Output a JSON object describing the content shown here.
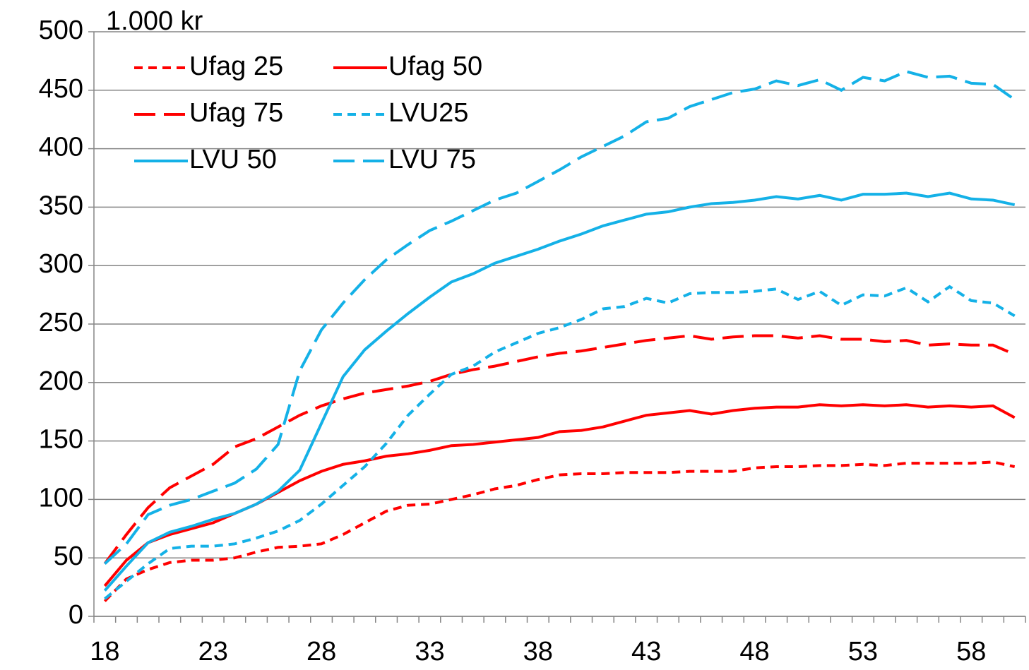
{
  "chart_data": {
    "type": "line",
    "ylabel": "1.000 kr",
    "x": [
      18,
      19,
      20,
      21,
      22,
      23,
      24,
      25,
      26,
      27,
      28,
      29,
      30,
      31,
      32,
      33,
      34,
      35,
      36,
      37,
      38,
      39,
      40,
      41,
      42,
      43,
      44,
      45,
      46,
      47,
      48,
      49,
      50,
      51,
      52,
      53,
      54,
      55,
      56,
      57,
      58,
      59,
      60
    ],
    "xlim": [
      17.5,
      60.5
    ],
    "xticks": [
      18,
      23,
      28,
      33,
      38,
      43,
      48,
      53,
      58
    ],
    "ylim": [
      0,
      500
    ],
    "yticks": [
      0,
      50,
      100,
      150,
      200,
      250,
      300,
      350,
      400,
      450,
      500
    ],
    "grid": true,
    "legend": "upper left",
    "series": [
      {
        "name": "Ufag 25",
        "color": "#ff0000",
        "dash": "short",
        "values": [
          13,
          32,
          40,
          46,
          48,
          48,
          50,
          55,
          59,
          60,
          62,
          70,
          80,
          90,
          95,
          96,
          100,
          104,
          109,
          112,
          117,
          121,
          122,
          122,
          123,
          123,
          123,
          124,
          124,
          124,
          127,
          128,
          128,
          129,
          129,
          130,
          129,
          131,
          131,
          131,
          131,
          132,
          128
        ]
      },
      {
        "name": "Ufag 50",
        "color": "#ff0000",
        "dash": "solid",
        "values": [
          26,
          48,
          63,
          70,
          75,
          80,
          88,
          96,
          106,
          116,
          124,
          130,
          133,
          137,
          139,
          142,
          146,
          147,
          149,
          151,
          153,
          158,
          159,
          162,
          167,
          172,
          174,
          176,
          173,
          176,
          178,
          179,
          179,
          181,
          180,
          181,
          180,
          181,
          179,
          180,
          179,
          180,
          170
        ]
      },
      {
        "name": "Ufag 75",
        "color": "#ff0000",
        "dash": "long",
        "values": [
          45,
          70,
          93,
          110,
          120,
          130,
          145,
          152,
          162,
          172,
          180,
          186,
          191,
          194,
          197,
          201,
          207,
          211,
          214,
          218,
          222,
          225,
          227,
          230,
          233,
          236,
          238,
          240,
          237,
          239,
          240,
          240,
          238,
          240,
          237,
          237,
          235,
          236,
          232,
          233,
          232,
          232,
          224
        ]
      },
      {
        "name": "LVU25",
        "color": "#14b1e7",
        "dash": "short",
        "values": [
          15,
          30,
          45,
          58,
          60,
          60,
          62,
          67,
          73,
          82,
          96,
          112,
          128,
          148,
          172,
          190,
          207,
          214,
          226,
          234,
          242,
          247,
          254,
          263,
          265,
          272,
          268,
          276,
          277,
          277,
          278,
          280,
          271,
          278,
          266,
          275,
          274,
          281,
          269,
          282,
          270,
          268,
          257
        ]
      },
      {
        "name": "LVU 50",
        "color": "#14b1e7",
        "dash": "solid",
        "values": [
          22,
          43,
          63,
          72,
          77,
          83,
          88,
          96,
          107,
          125,
          165,
          205,
          228,
          244,
          259,
          273,
          286,
          293,
          302,
          308,
          314,
          321,
          327,
          334,
          339,
          344,
          346,
          350,
          353,
          354,
          356,
          359,
          357,
          360,
          356,
          361,
          361,
          362,
          359,
          362,
          357,
          356,
          352
        ]
      },
      {
        "name": "LVU 75",
        "color": "#14b1e7",
        "dash": "long",
        "values": [
          45,
          62,
          87,
          95,
          100,
          107,
          114,
          126,
          147,
          210,
          245,
          268,
          288,
          305,
          318,
          330,
          338,
          347,
          356,
          362,
          372,
          382,
          393,
          402,
          411,
          423,
          426,
          436,
          442,
          448,
          451,
          458,
          454,
          459,
          450,
          461,
          458,
          466,
          461,
          462,
          456,
          455,
          442
        ]
      }
    ]
  }
}
